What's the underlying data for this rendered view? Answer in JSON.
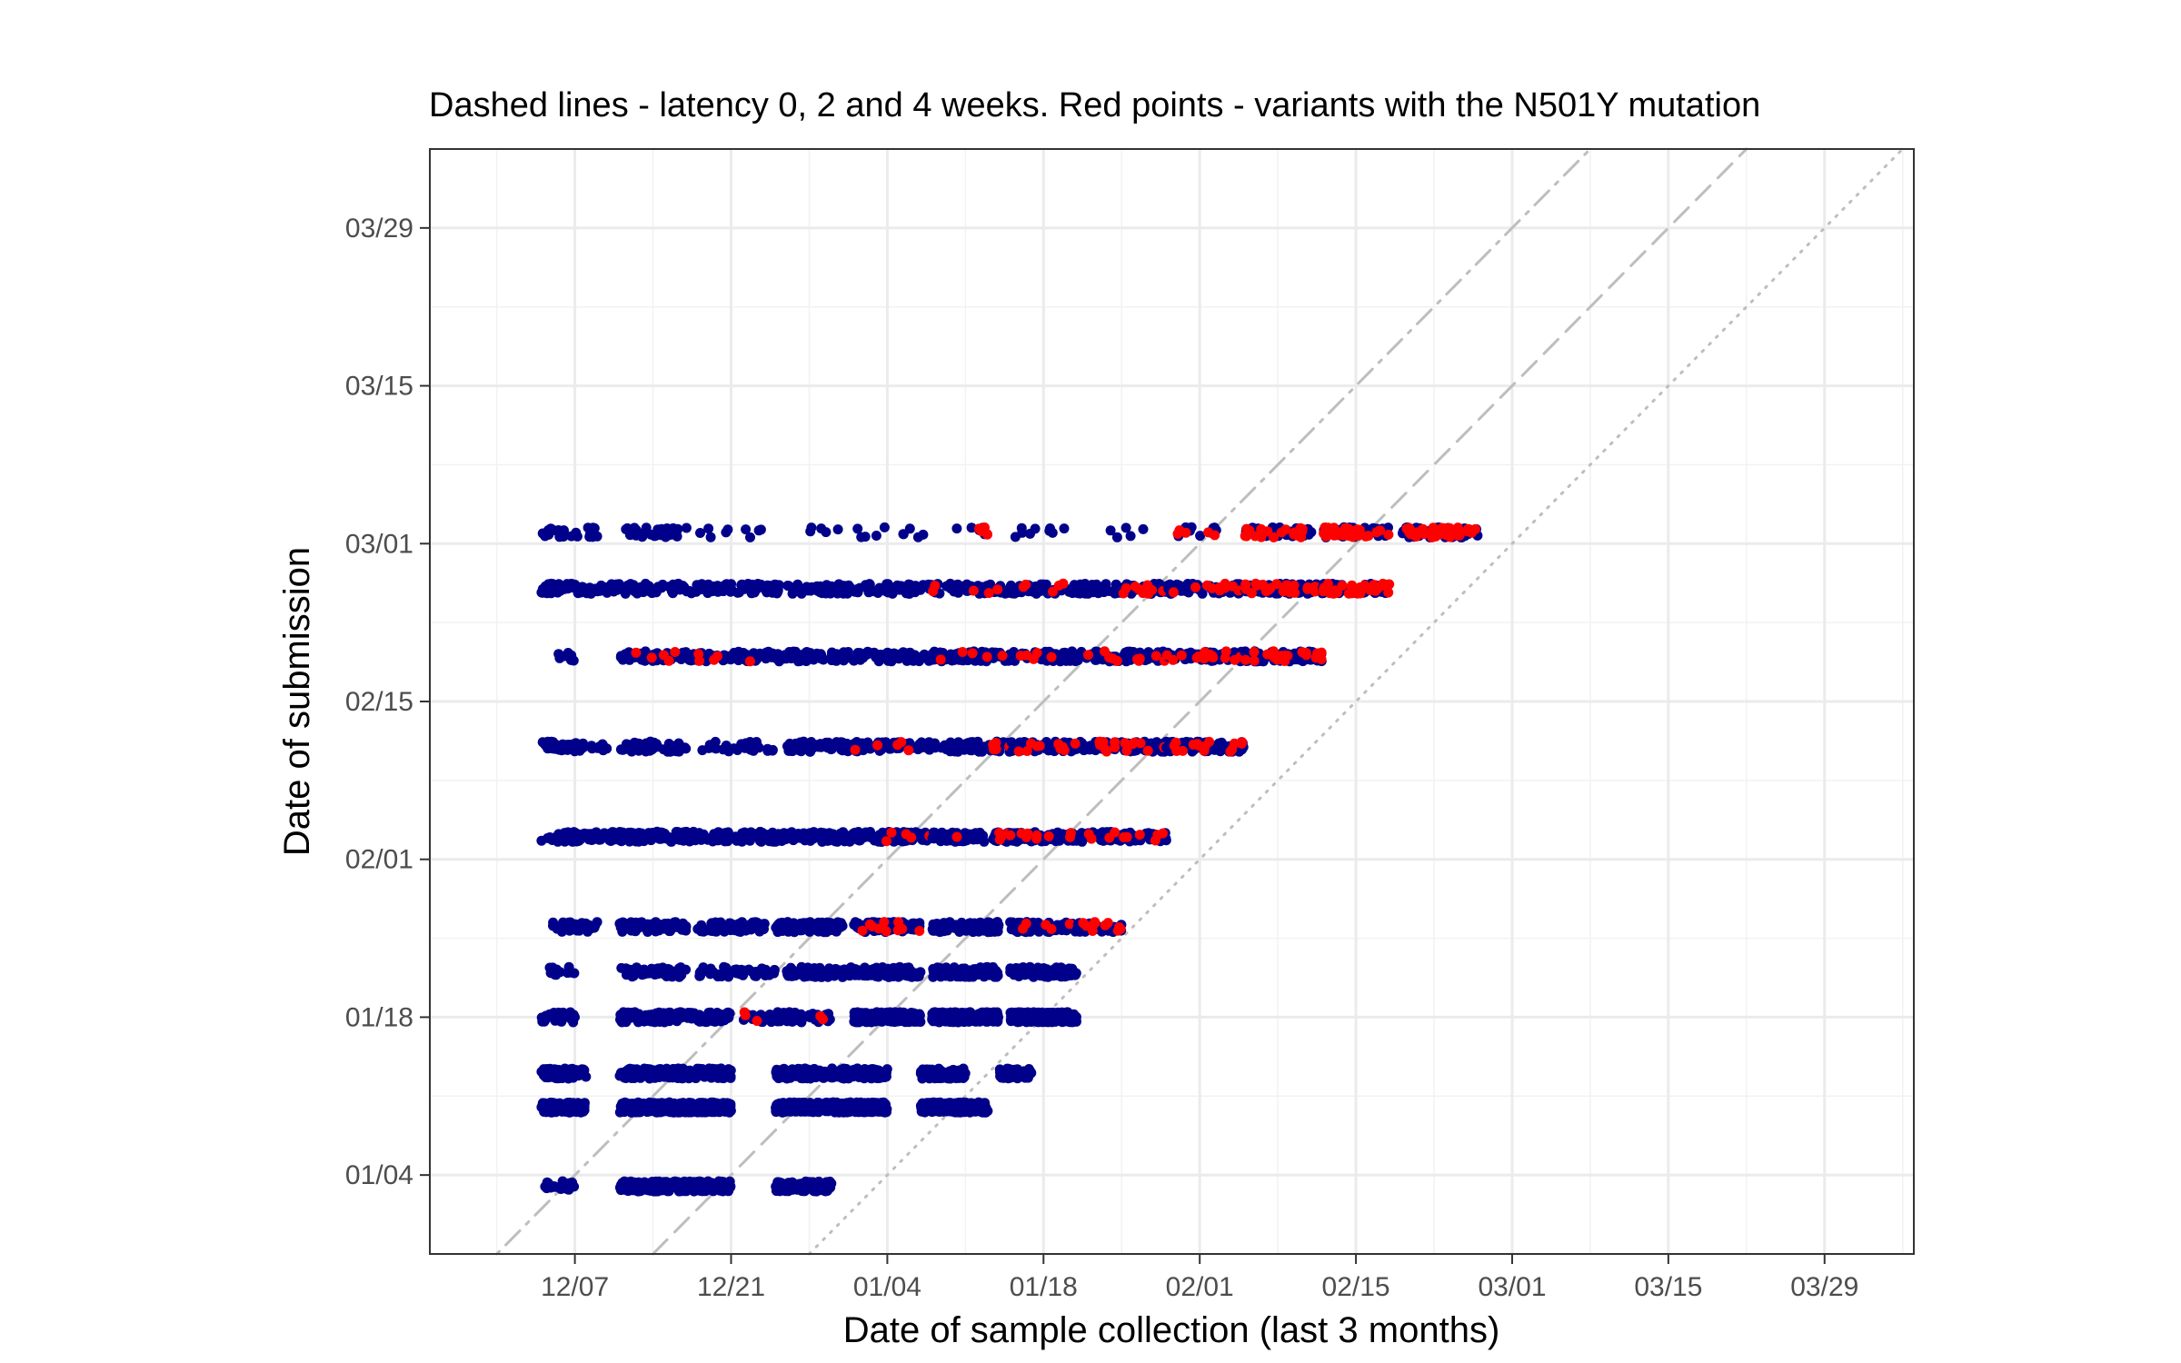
{
  "chart_data": {
    "type": "scatter",
    "title": "Dashed lines - latency 0, 2 and 4 weeks. Red points - variants with the N501Y mutation",
    "xlabel": "Date of sample collection (last 3 months)",
    "ylabel": "Date of submission",
    "x_unit": "date",
    "y_unit": "date",
    "xlim": [
      "2020-11-24",
      "2021-04-06"
    ],
    "ylim": [
      "2020-12-28",
      "2021-04-05"
    ],
    "x_ticks": [
      {
        "date": "2020-12-07",
        "label": "12/07"
      },
      {
        "date": "2020-12-21",
        "label": "12/21"
      },
      {
        "date": "2021-01-04",
        "label": "01/04"
      },
      {
        "date": "2021-01-18",
        "label": "01/18"
      },
      {
        "date": "2021-02-01",
        "label": "02/01"
      },
      {
        "date": "2021-02-15",
        "label": "02/15"
      },
      {
        "date": "2021-03-01",
        "label": "03/01"
      },
      {
        "date": "2021-03-15",
        "label": "03/15"
      },
      {
        "date": "2021-03-29",
        "label": "03/29"
      }
    ],
    "y_ticks": [
      {
        "date": "2021-01-04",
        "label": "01/04"
      },
      {
        "date": "2021-01-18",
        "label": "01/18"
      },
      {
        "date": "2021-02-01",
        "label": "02/01"
      },
      {
        "date": "2021-02-15",
        "label": "02/15"
      },
      {
        "date": "2021-03-01",
        "label": "03/01"
      },
      {
        "date": "2021-03-15",
        "label": "03/15"
      },
      {
        "date": "2021-03-29",
        "label": "03/29"
      }
    ],
    "grid": true,
    "colors": {
      "default": "#00008B",
      "n501y": "#FF0000",
      "reference": "#BEBEBE"
    },
    "reference_lines": [
      {
        "latency_weeks": 0,
        "style": "dotted"
      },
      {
        "latency_weeks": 2,
        "style": "dashed"
      },
      {
        "latency_weeks": 4,
        "style": "dotdash"
      }
    ],
    "submission_batches": [
      {
        "submitted": "2021-01-03",
        "clusters": [
          [
            "2020-12-04",
            "2020-12-07",
            4,
            0
          ],
          [
            "2020-12-11",
            "2020-12-21",
            22,
            0
          ],
          [
            "2020-12-25",
            "2020-12-30",
            20,
            0
          ]
        ]
      },
      {
        "submitted": "2021-01-10",
        "clusters": [
          [
            "2020-12-04",
            "2020-12-08",
            26,
            0
          ],
          [
            "2020-12-11",
            "2020-12-21",
            28,
            0
          ],
          [
            "2020-12-25",
            "2021-01-04",
            28,
            0
          ],
          [
            "2021-01-07",
            "2021-01-13",
            28,
            0
          ]
        ]
      },
      {
        "submitted": "2021-01-13",
        "clusters": [
          [
            "2020-12-04",
            "2020-12-08",
            14,
            0
          ],
          [
            "2020-12-11",
            "2020-12-21",
            16,
            0
          ],
          [
            "2020-12-25",
            "2021-01-04",
            16,
            0
          ],
          [
            "2021-01-07",
            "2021-01-11",
            16,
            0
          ],
          [
            "2021-01-14",
            "2021-01-17",
            12,
            0
          ]
        ]
      },
      {
        "submitted": "2021-01-18",
        "clusters": [
          [
            "2020-12-04",
            "2020-12-07",
            10,
            0
          ],
          [
            "2020-12-11",
            "2020-12-21",
            12,
            0
          ],
          [
            "2020-12-22",
            "2020-12-30",
            6,
            1
          ],
          [
            "2021-01-01",
            "2021-01-07",
            24,
            0
          ],
          [
            "2021-01-08",
            "2021-01-14",
            26,
            0
          ],
          [
            "2021-01-15",
            "2021-01-21",
            26,
            0
          ]
        ]
      },
      {
        "submitted": "2021-01-22",
        "clusters": [
          [
            "2020-12-04",
            "2020-12-07",
            3,
            0
          ],
          [
            "2020-12-11",
            "2020-12-17",
            6,
            0
          ],
          [
            "2020-12-18",
            "2020-12-25",
            5,
            0
          ],
          [
            "2020-12-26",
            "2021-01-01",
            10,
            0
          ],
          [
            "2021-01-01",
            "2021-01-07",
            12,
            0
          ],
          [
            "2021-01-08",
            "2021-01-14",
            14,
            0
          ],
          [
            "2021-01-15",
            "2021-01-21",
            12,
            0
          ]
        ]
      },
      {
        "submitted": "2021-01-26",
        "clusters": [
          [
            "2020-12-05",
            "2020-12-09",
            8,
            0
          ],
          [
            "2020-12-11",
            "2020-12-17",
            10,
            0
          ],
          [
            "2020-12-18",
            "2020-12-24",
            10,
            0
          ],
          [
            "2020-12-25",
            "2020-12-31",
            10,
            0
          ],
          [
            "2021-01-01",
            "2021-01-07",
            10,
            2
          ],
          [
            "2021-01-08",
            "2021-01-14",
            10,
            0
          ],
          [
            "2021-01-15",
            "2021-01-21",
            10,
            1
          ],
          [
            "2021-01-21",
            "2021-01-25",
            6,
            2
          ]
        ]
      },
      {
        "submitted": "2021-02-03",
        "clusters": [
          [
            "2020-12-04",
            "2020-12-11",
            8,
            0
          ],
          [
            "2020-12-11",
            "2020-12-18",
            8,
            0
          ],
          [
            "2020-12-18",
            "2020-12-25",
            8,
            0
          ],
          [
            "2020-12-25",
            "2021-01-01",
            8,
            0
          ],
          [
            "2021-01-01",
            "2021-01-08",
            8,
            1
          ],
          [
            "2021-01-08",
            "2021-01-15",
            8,
            1
          ],
          [
            "2021-01-15",
            "2021-01-22",
            8,
            2
          ],
          [
            "2021-01-22",
            "2021-01-29",
            8,
            2
          ]
        ]
      },
      {
        "submitted": "2021-02-11",
        "clusters": [
          [
            "2020-12-04",
            "2020-12-10",
            6,
            0
          ],
          [
            "2020-12-11",
            "2020-12-17",
            6,
            0
          ],
          [
            "2020-12-18",
            "2020-12-25",
            3,
            0
          ],
          [
            "2020-12-26",
            "2021-01-01",
            6,
            0
          ],
          [
            "2021-01-01",
            "2021-01-08",
            6,
            1
          ],
          [
            "2021-01-08",
            "2021-01-15",
            6,
            1
          ],
          [
            "2021-01-15",
            "2021-01-22",
            8,
            2
          ],
          [
            "2021-01-22",
            "2021-01-29",
            8,
            3
          ],
          [
            "2021-01-29",
            "2021-02-05",
            8,
            3
          ]
        ]
      },
      {
        "submitted": "2021-02-19",
        "clusters": [
          [
            "2020-12-05",
            "2020-12-07",
            2,
            0
          ],
          [
            "2020-12-11",
            "2020-12-18",
            6,
            1
          ],
          [
            "2020-12-18",
            "2020-12-25",
            6,
            1
          ],
          [
            "2020-12-25",
            "2021-01-01",
            6,
            0
          ],
          [
            "2021-01-01",
            "2021-01-08",
            6,
            0
          ],
          [
            "2021-01-08",
            "2021-01-15",
            6,
            1
          ],
          [
            "2021-01-15",
            "2021-01-22",
            6,
            1
          ],
          [
            "2021-01-22",
            "2021-01-29",
            6,
            2
          ],
          [
            "2021-01-29",
            "2021-02-05",
            6,
            3
          ],
          [
            "2021-02-05",
            "2021-02-12",
            8,
            4
          ]
        ]
      },
      {
        "submitted": "2021-02-25",
        "clusters": [
          [
            "2020-12-04",
            "2020-12-11",
            6,
            0
          ],
          [
            "2020-12-11",
            "2020-12-18",
            6,
            0
          ],
          [
            "2020-12-18",
            "2020-12-25",
            6,
            0
          ],
          [
            "2020-12-25",
            "2021-01-01",
            6,
            0
          ],
          [
            "2021-01-01",
            "2021-01-08",
            6,
            0
          ],
          [
            "2021-01-08",
            "2021-01-15",
            6,
            1
          ],
          [
            "2021-01-15",
            "2021-01-22",
            6,
            1
          ],
          [
            "2021-01-22",
            "2021-01-29",
            6,
            2
          ],
          [
            "2021-01-29",
            "2021-02-05",
            6,
            2
          ],
          [
            "2021-02-05",
            "2021-02-12",
            8,
            5
          ],
          [
            "2021-02-12",
            "2021-02-18",
            8,
            7
          ]
        ]
      },
      {
        "submitted": "2021-03-02",
        "clusters": [
          [
            "2020-12-04",
            "2020-12-09",
            4,
            0
          ],
          [
            "2020-12-11",
            "2020-12-17",
            4,
            0
          ],
          [
            "2020-12-18",
            "2020-12-21",
            1,
            0
          ],
          [
            "2020-12-22",
            "2020-12-24",
            1,
            0
          ],
          [
            "2020-12-28",
            "2020-12-31",
            1,
            0
          ],
          [
            "2021-01-01",
            "2021-01-04",
            1,
            0
          ],
          [
            "2021-01-05",
            "2021-01-08",
            1,
            0
          ],
          [
            "2021-01-10",
            "2021-01-13",
            1,
            1
          ],
          [
            "2021-01-15",
            "2021-01-18",
            1,
            0
          ],
          [
            "2021-01-18",
            "2021-01-20",
            1,
            0
          ],
          [
            "2021-01-24",
            "2021-01-27",
            1,
            0
          ],
          [
            "2021-01-30",
            "2021-02-03",
            2,
            1
          ],
          [
            "2021-02-05",
            "2021-02-11",
            6,
            4
          ],
          [
            "2021-02-12",
            "2021-02-18",
            6,
            6
          ],
          [
            "2021-02-19",
            "2021-02-26",
            6,
            8
          ]
        ]
      }
    ]
  }
}
